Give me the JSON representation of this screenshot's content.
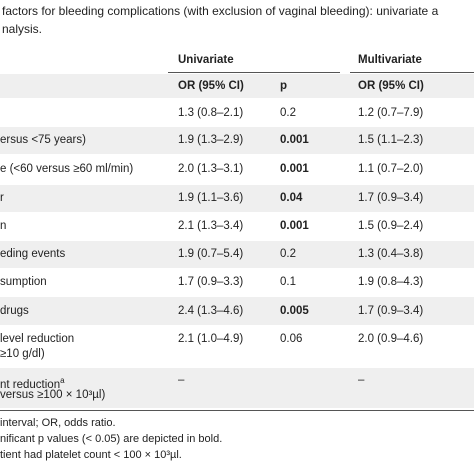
{
  "caption": {
    "lines": [
      "factors for bleeding complications (with exclusion of vaginal bleeding): univariate a",
      "nalysis."
    ]
  },
  "table": {
    "group_headers": [
      "Univariate",
      "Multivariate"
    ],
    "column_headers": [
      "OR (95% CI)",
      "p",
      "OR (95% CI)"
    ],
    "rows": [
      {
        "label": null,
        "uni_or": "1.3 (0.8–2.1)",
        "p": "0.2",
        "p_bold": false,
        "multi_or": "1.2 (0.7–7.9)"
      },
      {
        "label": [
          "ersus <75 years)"
        ],
        "uni_or": "1.9 (1.3–2.9)",
        "p": "0.001",
        "p_bold": true,
        "multi_or": "1.5 (1.1–2.3)"
      },
      {
        "label": [
          "e (<60 versus ≥60 ml/min)"
        ],
        "uni_or": "2.0 (1.3–3.1)",
        "p": "0.001",
        "p_bold": true,
        "multi_or": "1.1 (0.7–2.0)"
      },
      {
        "label": [
          "r"
        ],
        "uni_or": "1.9 (1.1–3.6)",
        "p": "0.04",
        "p_bold": true,
        "multi_or": "1.7 (0.9–3.4)"
      },
      {
        "label": [
          "n"
        ],
        "uni_or": "2.1 (1.3–3.4)",
        "p": "0.001",
        "p_bold": true,
        "multi_or": "1.5 (0.9–2.4)"
      },
      {
        "label": [
          "eding events"
        ],
        "uni_or": "1.9 (0.7–5.4)",
        "p": "0.2",
        "p_bold": false,
        "multi_or": "1.3 (0.4–3.8)"
      },
      {
        "label": [
          "sumption"
        ],
        "uni_or": "1.7 (0.9–3.3)",
        "p": "0.1",
        "p_bold": false,
        "multi_or": "1.9 (0.8–4.3)"
      },
      {
        "label": [
          "drugs"
        ],
        "uni_or": "2.4 (1.3–4.6)",
        "p": "0.005",
        "p_bold": true,
        "multi_or": "1.7 (0.9–3.4)"
      },
      {
        "label": [
          " level reduction",
          "≥10 g/dl)"
        ],
        "uni_or": "2.1 (1.0–4.9)",
        "p": "0.06",
        "p_bold": false,
        "multi_or": "2.0 (0.9–4.6)"
      },
      {
        "label": [
          "nt reduction",
          "versus ≥100 × 10³µl)"
        ],
        "label_sup": "a",
        "uni_or": "–",
        "p": null,
        "p_bold": false,
        "multi_or": "–"
      }
    ]
  },
  "footnotes": [
    "interval; OR, odds ratio.",
    "nificant p values (< 0.05) are depicted in bold.",
    "tient had platelet count < 100 × 10³µl."
  ]
}
